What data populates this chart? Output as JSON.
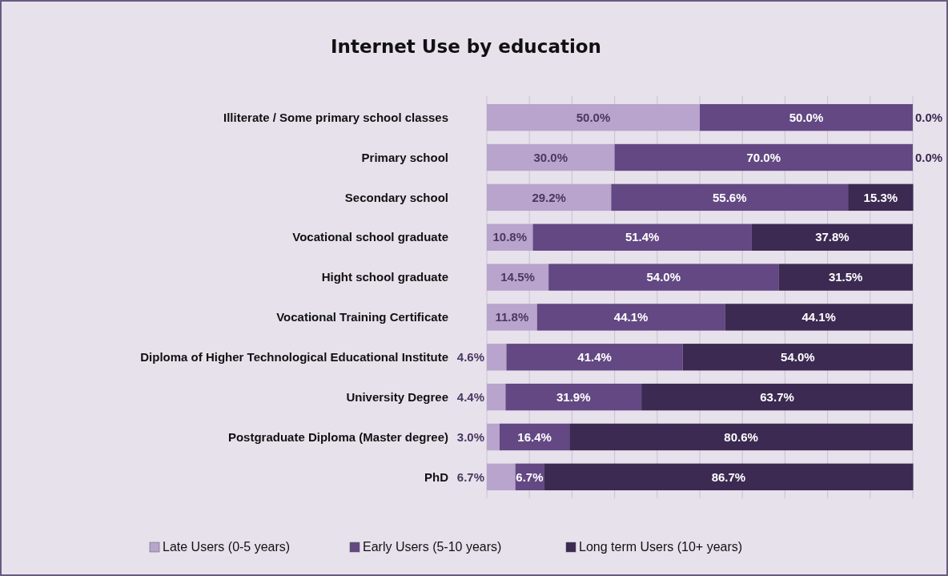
{
  "chart_data": {
    "type": "bar",
    "title": "Internet Use by education",
    "orientation": "horizontal",
    "stacked": true,
    "categories": [
      "Illiterate / Some primary school classes",
      "Primary school",
      "Secondary school",
      "Vocational school graduate",
      "Hight school graduate",
      "Vocational Training Certificate",
      "Diploma of Higher Technological Educational Institute",
      "University Degree",
      "Postgraduate Diploma (Master degree)",
      "PhD"
    ],
    "series": [
      {
        "name": "Late Users (0-5 years)",
        "color": "#b8a4cc",
        "values": [
          50.0,
          30.0,
          29.2,
          10.8,
          14.5,
          11.8,
          4.6,
          4.4,
          3.0,
          6.7
        ],
        "value_labels": [
          "50.0%",
          "30.0%",
          "29.2%",
          "10.8%",
          "14.5%",
          "11.8%",
          "4.6%",
          "4.4%",
          "3.0%",
          "6.7%"
        ]
      },
      {
        "name": "Early Users (5-10 years)",
        "color": "#634883",
        "values": [
          50.0,
          70.0,
          55.6,
          51.4,
          54.0,
          44.1,
          41.4,
          31.9,
          16.4,
          6.7
        ],
        "value_labels": [
          "50.0%",
          "70.0%",
          "55.6%",
          "51.4%",
          "54.0%",
          "44.1%",
          "41.4%",
          "31.9%",
          "16.4%",
          "6.7%"
        ]
      },
      {
        "name": "Long term Users (10+ years)",
        "color": "#3c2a52",
        "values": [
          0.0,
          0.0,
          15.3,
          37.8,
          31.5,
          44.1,
          54.0,
          63.7,
          80.6,
          86.7
        ],
        "value_labels": [
          "0.0%",
          "0.0%",
          "15.3%",
          "37.8%",
          "31.5%",
          "44.1%",
          "54.0%",
          "63.7%",
          "80.6%",
          "86.7%"
        ]
      }
    ],
    "xlim": [
      0,
      100
    ],
    "xticks": [
      {
        "value": 0,
        "label": null
      },
      {
        "value": 10,
        "label": null
      },
      {
        "value": 20,
        "label": null
      },
      {
        "value": 30,
        "label": null
      },
      {
        "value": 40,
        "label": null
      },
      {
        "value": 50,
        "label": null
      },
      {
        "value": 60,
        "label": null
      },
      {
        "value": 70,
        "label": null
      },
      {
        "value": 80,
        "label": null
      },
      {
        "value": 90,
        "label": null
      },
      {
        "value": 100,
        "label": null
      }
    ],
    "grid": "x",
    "legend": "bottom"
  }
}
